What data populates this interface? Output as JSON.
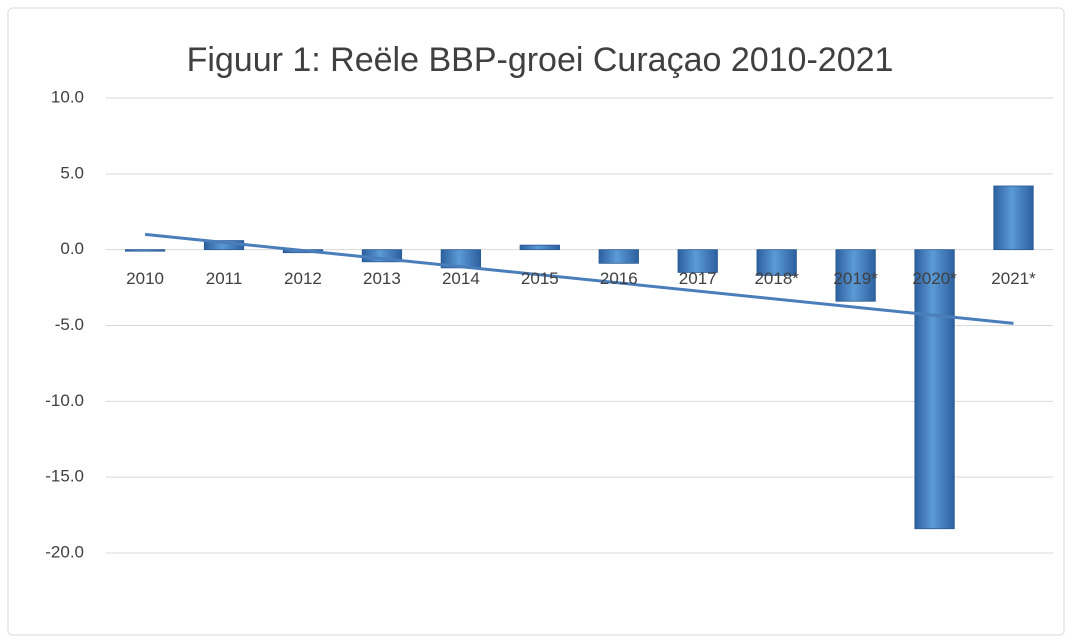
{
  "chart_data": {
    "type": "bar",
    "title": "Figuur 1: Reële BBP-groei Curaçao 2010-2021",
    "categories": [
      "2010",
      "2011",
      "2012",
      "2013",
      "2014",
      "2015",
      "2016",
      "2017",
      "2018*",
      "2019*",
      "2020*",
      "2021*"
    ],
    "values": [
      -0.1,
      0.6,
      -0.2,
      -0.8,
      -1.2,
      0.3,
      -0.9,
      -1.5,
      -1.7,
      -3.4,
      -18.4,
      4.2
    ],
    "color": "#4a86c8",
    "trendline_color": "#4a7ebb",
    "ylim": [
      -20,
      10
    ],
    "yticks": [
      {
        "value": 10,
        "label": "10.0"
      },
      {
        "value": 5,
        "label": "5.0"
      },
      {
        "value": 0,
        "label": "0.0"
      },
      {
        "value": -5,
        "label": "-5.0"
      },
      {
        "value": -10,
        "label": "-10.0"
      },
      {
        "value": -15,
        "label": "-15.0"
      },
      {
        "value": -20,
        "label": "-20.0"
      }
    ],
    "grid": true,
    "trendline": "linear"
  }
}
